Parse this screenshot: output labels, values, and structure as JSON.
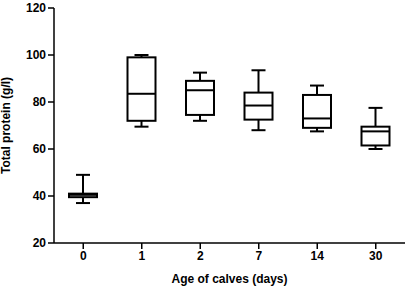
{
  "chart_data": {
    "type": "box",
    "x_label": "Age of calves (days)",
    "y_label": "Total protein (g/l)",
    "categories": [
      "0",
      "1",
      "2",
      "7",
      "14",
      "30"
    ],
    "min": [
      37,
      69.5,
      72,
      68,
      67.5,
      60
    ],
    "q1": [
      39.5,
      72,
      74.5,
      72.5,
      69,
      61.5
    ],
    "median": [
      40.5,
      83.5,
      85,
      78.5,
      73,
      67.5
    ],
    "q3": [
      41,
      99,
      89,
      84,
      83,
      69.5
    ],
    "max": [
      49,
      100,
      92.5,
      93.5,
      87,
      77.5
    ],
    "color": "#000000",
    "ylim": [
      20,
      120
    ],
    "yticks": [
      20,
      40,
      60,
      80,
      100,
      120
    ],
    "grid": false
  }
}
